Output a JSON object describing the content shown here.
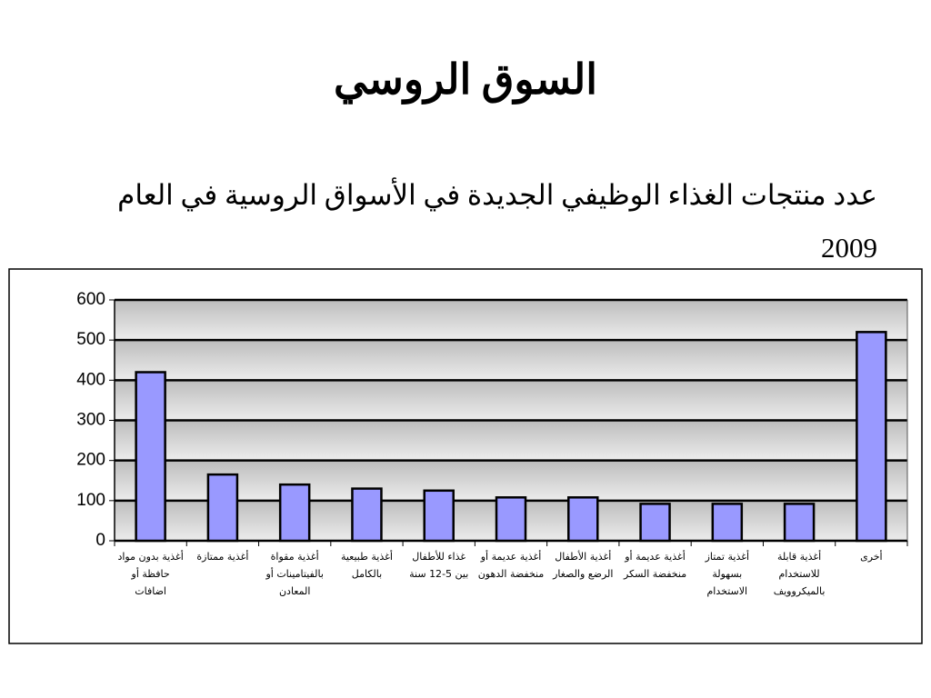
{
  "chart_data": {
    "type": "bar",
    "title": "السوق الروسي",
    "subtitle": "عدد منتجات الغذاء الوظيفي الجديدة في الأسواق الروسية في العام 2009",
    "categories": [
      "أغذية بدون مواد حافظة أو اضافات",
      "أغذية ممتازة",
      "أغذية مقواة بالفيتامينات أو المعادن",
      "أغذية طبيعية بالكامل",
      "غذاء للأطفال بين 5-12 سنة",
      "أغذية عديمة أو منخفضة الدهون",
      "أغذية الأطفال الرضع والصغار",
      "أغذية عديمة أو منخفضة السكر",
      "أغذية تمتاز بسهولة الاستخدام",
      "أغذية قابلة للاستخدام بالميكروويف",
      "أخرى"
    ],
    "values": [
      420,
      165,
      140,
      130,
      125,
      108,
      108,
      92,
      92,
      92,
      520
    ],
    "color": "#9999ff",
    "ylim": [
      0,
      600
    ],
    "yticks": [
      0,
      100,
      200,
      300,
      400,
      500,
      600
    ],
    "grid": true
  }
}
